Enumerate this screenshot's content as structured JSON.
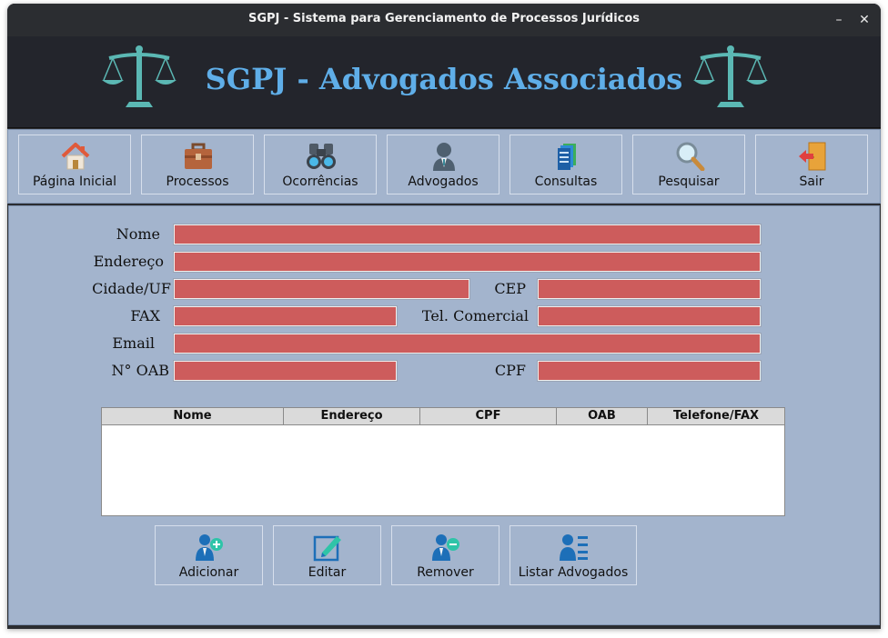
{
  "window": {
    "title": "SGPJ - Sistema para Gerenciamento de Processos Jurídicos",
    "minimize": "–",
    "close": "✕"
  },
  "banner": {
    "title": "SGPJ - Advogados Associados",
    "icon": "scales-of-justice-icon",
    "color": "#5faee8"
  },
  "toolbar": {
    "items": [
      {
        "label": "Página Inicial",
        "icon": "home-icon"
      },
      {
        "label": "Processos",
        "icon": "briefcase-icon"
      },
      {
        "label": "Ocorrências",
        "icon": "binoculars-icon"
      },
      {
        "label": "Advogados",
        "icon": "lawyer-icon"
      },
      {
        "label": "Consultas",
        "icon": "documents-icon"
      },
      {
        "label": "Pesquisar",
        "icon": "magnifier-icon"
      },
      {
        "label": "Sair",
        "icon": "exit-door-icon"
      }
    ]
  },
  "form": {
    "labels": {
      "nome": "Nome",
      "endereco": "Endereço",
      "cidade": "Cidade/UF",
      "cep": "CEP",
      "fax": "FAX",
      "tel": "Tel. Comercial",
      "email": "Email",
      "oab": "N° OAB",
      "cpf": "CPF"
    },
    "values": {
      "nome": "",
      "endereco": "",
      "cidade": "",
      "cep": "",
      "fax": "",
      "tel": "",
      "email": "",
      "oab": "",
      "cpf": ""
    },
    "field_color": "#cd5c5c"
  },
  "table": {
    "columns": [
      "Nome",
      "Endereço",
      "CPF",
      "OAB",
      "Telefone/FAX"
    ],
    "rows": []
  },
  "actions": [
    {
      "label": "Adicionar",
      "icon": "add-user-icon"
    },
    {
      "label": "Editar",
      "icon": "edit-icon"
    },
    {
      "label": "Remover",
      "icon": "remove-user-icon"
    },
    {
      "label": "Listar Advogados",
      "icon": "list-users-icon"
    }
  ],
  "colors": {
    "panel": "#a3b4cd",
    "banner_bg": "#23252c",
    "scale": "#5bb8b4"
  }
}
